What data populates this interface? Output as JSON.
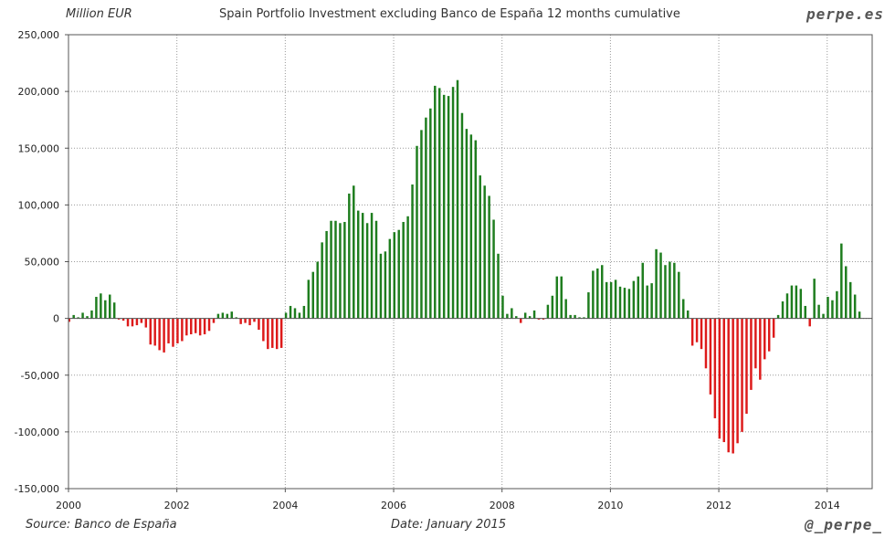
{
  "header": {
    "units": "Million EUR",
    "title": "Spain Portfolio Investment excluding Banco de España 12 months cumulative",
    "brand": "perpe.es"
  },
  "footer": {
    "source": "Source: Banco de España",
    "date": "Date: January 2015",
    "handle": "@_perpe_"
  },
  "chart_data": {
    "type": "bar",
    "title": "Spain Portfolio Investment excluding Banco de España 12 months cumulative",
    "ylabel": "Million EUR",
    "xlabel": "",
    "ylim": [
      -150000,
      250000
    ],
    "yticks": [
      -150000,
      -100000,
      -50000,
      0,
      50000,
      100000,
      150000,
      200000,
      250000
    ],
    "ytick_labels": [
      "-150,000",
      "-100,000",
      "-50,000",
      "0",
      "50,000",
      "100,000",
      "150,000",
      "200,000",
      "250,000"
    ],
    "xlim": [
      2000,
      2014.83
    ],
    "xticks": [
      2000,
      2002,
      2004,
      2006,
      2008,
      2010,
      2012,
      2014
    ],
    "xtick_labels": [
      "2000",
      "2002",
      "2004",
      "2006",
      "2008",
      "2010",
      "2012",
      "2014"
    ],
    "grid": true,
    "positive_color": "#1e7d1e",
    "negative_color": "#dd1a1a",
    "series": [
      {
        "name": "12 months cumulative",
        "start": "2000-01",
        "frequency": "monthly",
        "values": [
          -3000,
          3000,
          1000,
          5000,
          2000,
          7000,
          19000,
          22000,
          16000,
          21000,
          14000,
          -1000,
          -2000,
          -7000,
          -7000,
          -6000,
          -4000,
          -8000,
          -23000,
          -24000,
          -28000,
          -30000,
          -22000,
          -25000,
          -22000,
          -20000,
          -15000,
          -14000,
          -13000,
          -15000,
          -14000,
          -11000,
          -4000,
          4000,
          5000,
          4000,
          6000,
          1000,
          -5000,
          -4000,
          -6000,
          -3000,
          -10000,
          -20000,
          -27000,
          -26000,
          -27000,
          -26000,
          5000,
          11000,
          9000,
          5000,
          11000,
          34000,
          41000,
          50000,
          67000,
          77000,
          86000,
          86000,
          84000,
          85000,
          110000,
          117000,
          95000,
          93000,
          84000,
          93000,
          86000,
          57000,
          59000,
          70000,
          76000,
          78000,
          85000,
          90000,
          118000,
          152000,
          166000,
          177000,
          185000,
          205000,
          203000,
          197000,
          196000,
          204000,
          210000,
          181000,
          167000,
          162000,
          157000,
          126000,
          117000,
          108000,
          87000,
          57000,
          20000,
          4000,
          9000,
          2000,
          -4000,
          5000,
          2000,
          7000,
          -1000,
          -1000,
          12000,
          20000,
          37000,
          37000,
          17000,
          3000,
          3000,
          1000,
          1000,
          23000,
          42000,
          44000,
          47000,
          32000,
          32000,
          34000,
          28000,
          27000,
          26000,
          33000,
          37000,
          49000,
          29000,
          31000,
          61000,
          58000,
          47000,
          50000,
          49000,
          41000,
          17000,
          7000,
          -24000,
          -21000,
          -27000,
          -44000,
          -67000,
          -88000,
          -106000,
          -109000,
          -118000,
          -119000,
          -110000,
          -100000,
          -84000,
          -63000,
          -44000,
          -54000,
          -36000,
          -29000,
          -17000,
          3000,
          15000,
          22000,
          29000,
          29000,
          26000,
          11000,
          -7000,
          35000,
          12000,
          4000,
          19000,
          16000,
          24000,
          66000,
          46000,
          32000,
          21000,
          6000
        ]
      }
    ]
  }
}
